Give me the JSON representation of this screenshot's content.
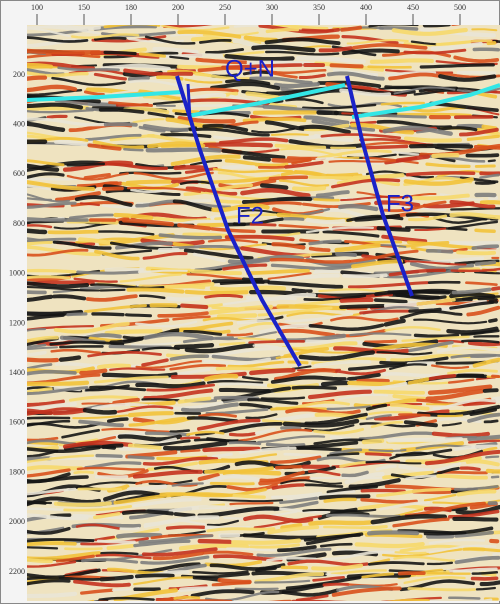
{
  "labels": {
    "horizon": "Q+N",
    "fault_a": "F2",
    "fault_b": "F3"
  },
  "axes": {
    "top": [
      "100",
      "150",
      "180",
      "200",
      "250",
      "300",
      "350",
      "400",
      "450",
      "500"
    ],
    "left": [
      "200",
      "400",
      "600",
      "800",
      "1000",
      "1200",
      "1400",
      "1600",
      "1800",
      "2000",
      "2200"
    ]
  }
}
